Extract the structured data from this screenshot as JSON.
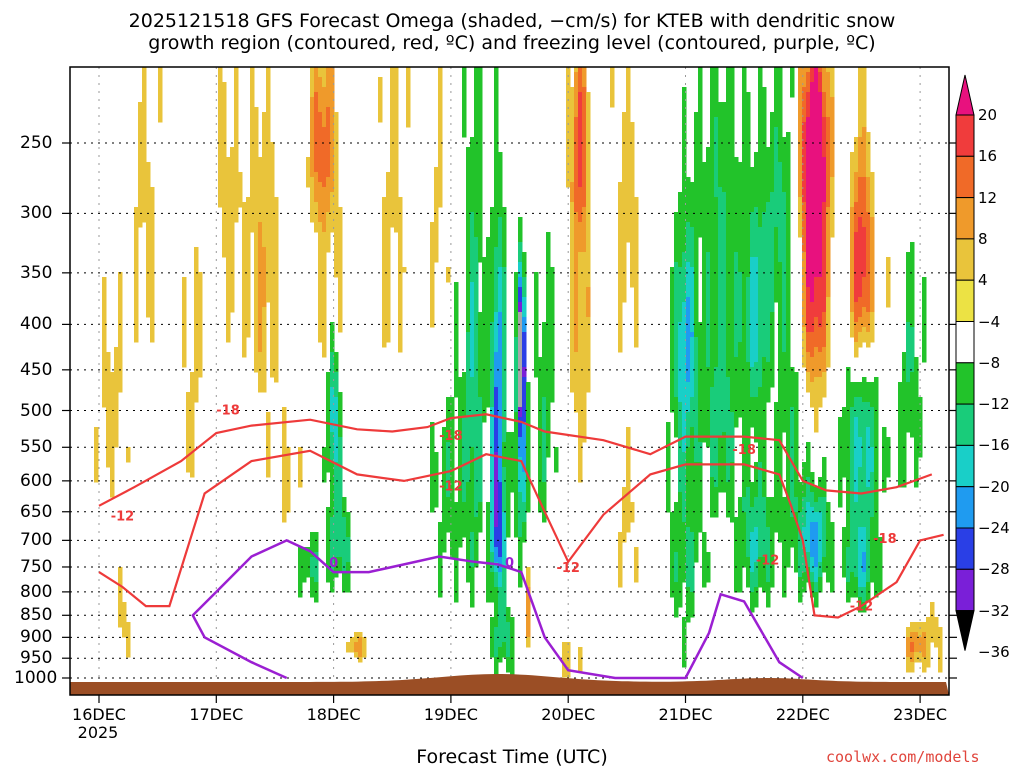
{
  "title_line1": "2025121518 GFS Forecast Omega (shaded, −cm/s) for KTEB with dendritic snow",
  "title_line2": "growth region (contoured, red, ºC) and freezing level (contoured, purple, ºC)",
  "credit": "coolwx.com/models",
  "chart_data": {
    "type": "heatmap",
    "xlabel": "Forecast Time (UTC)",
    "ylabel": "",
    "x_ticks": [
      "16DEC",
      "17DEC",
      "18DEC",
      "19DEC",
      "20DEC",
      "21DEC",
      "22DEC",
      "23DEC"
    ],
    "x_year": "2025",
    "y_ticks": [
      "250",
      "300",
      "350",
      "400",
      "450",
      "500",
      "550",
      "600",
      "650",
      "700",
      "750",
      "800",
      "850",
      "900",
      "950",
      "1000"
    ],
    "y_scale": "log-pressure (hPa, decreasing upward)",
    "colorbar": {
      "labels": [
        "20",
        "16",
        "12",
        "8",
        "4",
        "−4",
        "−8",
        "−12",
        "−16",
        "−20",
        "−24",
        "−28",
        "−32",
        "−36"
      ],
      "colors": [
        "#e8117e",
        "#f03c3c",
        "#f06a28",
        "#ef9a2b",
        "#e9c43b",
        "#ece244",
        "#ffffff",
        "#22c32a",
        "#19cc7a",
        "#19cfc8",
        "#1f9bf0",
        "#2a3fe6",
        "#7a1fd8",
        "#a8a8a8"
      ]
    },
    "contour_labels": {
      "red": [
        "-18",
        "-18",
        "-12",
        "-12",
        "-18",
        "-12",
        "-18",
        "-12",
        "-12"
      ],
      "purple": [
        "0",
        "0"
      ]
    },
    "contours": {
      "red_minus18_upper": [
        [
          16.0,
          640
        ],
        [
          16.3,
          610
        ],
        [
          16.7,
          570
        ],
        [
          17.0,
          530
        ],
        [
          17.3,
          520
        ],
        [
          17.8,
          512
        ],
        [
          18.2,
          525
        ],
        [
          18.5,
          528
        ],
        [
          18.8,
          522
        ],
        [
          19.0,
          510
        ],
        [
          19.3,
          505
        ],
        [
          19.6,
          515
        ],
        [
          19.8,
          528
        ],
        [
          20.3,
          540
        ],
        [
          20.7,
          560
        ],
        [
          21.0,
          535
        ],
        [
          21.5,
          535
        ],
        [
          21.8,
          540
        ],
        [
          22.0,
          600
        ],
        [
          22.2,
          615
        ],
        [
          22.5,
          620
        ],
        [
          22.8,
          610
        ],
        [
          23.1,
          590
        ]
      ],
      "red_minus12_lower": [
        [
          16.0,
          760
        ],
        [
          16.2,
          790
        ],
        [
          16.4,
          830
        ],
        [
          16.6,
          830
        ],
        [
          16.9,
          620
        ],
        [
          17.3,
          570
        ],
        [
          17.8,
          555
        ],
        [
          18.2,
          590
        ],
        [
          18.6,
          600
        ],
        [
          19.0,
          585
        ],
        [
          19.3,
          560
        ],
        [
          19.6,
          570
        ],
        [
          19.8,
          650
        ],
        [
          20.0,
          740
        ],
        [
          20.3,
          655
        ],
        [
          20.7,
          590
        ],
        [
          21.0,
          575
        ],
        [
          21.5,
          575
        ],
        [
          21.8,
          590
        ],
        [
          21.9,
          640
        ],
        [
          22.0,
          700
        ],
        [
          22.1,
          850
        ],
        [
          22.3,
          855
        ],
        [
          22.5,
          830
        ],
        [
          22.8,
          780
        ],
        [
          23.0,
          700
        ],
        [
          23.2,
          690
        ]
      ],
      "purple_freezing": [
        [
          17.0,
          800
        ],
        [
          17.3,
          730
        ],
        [
          17.6,
          700
        ],
        [
          17.8,
          720
        ],
        [
          18.0,
          760
        ],
        [
          18.3,
          760
        ],
        [
          18.6,
          745
        ],
        [
          18.9,
          730
        ],
        [
          19.2,
          740
        ],
        [
          19.4,
          745
        ],
        [
          19.6,
          760
        ],
        [
          19.8,
          900
        ],
        [
          20.0,
          980
        ],
        [
          20.4,
          1000
        ],
        [
          21.0,
          1000
        ],
        [
          21.2,
          890
        ],
        [
          21.3,
          805
        ],
        [
          21.5,
          820
        ],
        [
          21.8,
          960
        ],
        [
          22.0,
          1000
        ]
      ]
    }
  }
}
